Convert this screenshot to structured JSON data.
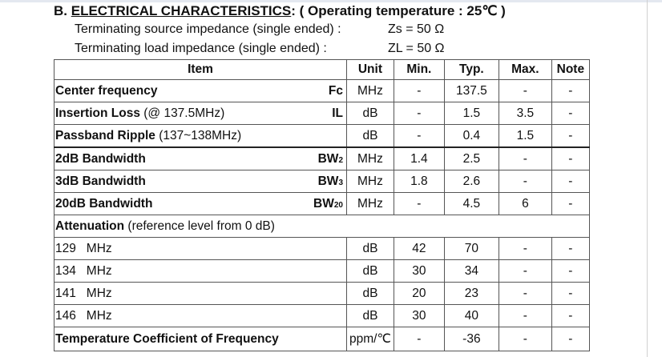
{
  "section": {
    "prefix": "B. ",
    "heading": "ELECTRICAL CHARACTERISTICS",
    "suffix": ": ( Operating temperature : 25℃ )"
  },
  "impedance": [
    {
      "label": "Terminating source impedance (single ended) :",
      "value": "Zs = 50  Ω"
    },
    {
      "label": "Terminating load impedance (single ended) :",
      "value": "ZL = 50  Ω"
    }
  ],
  "table": {
    "headers": [
      "Item",
      "Unit",
      "Min.",
      "Typ.",
      "Max.",
      "Note"
    ],
    "rows": [
      {
        "name": "Center frequency",
        "extra": "",
        "sym": "Fc",
        "sub": "",
        "unit": "MHz",
        "min": "-",
        "typ": "137.5",
        "max": "-",
        "note": "-"
      },
      {
        "name": "Insertion Loss",
        "extra": " (@ 137.5MHz)",
        "sym": "IL",
        "sub": "",
        "unit": "dB",
        "min": "-",
        "typ": "1.5",
        "max": "3.5",
        "note": "-"
      },
      {
        "name": "Passband Ripple",
        "extra": " (137~138MHz)",
        "sym": "",
        "sub": "",
        "unit": "dB",
        "min": "-",
        "typ": "0.4",
        "max": "1.5",
        "note": "-"
      },
      {
        "name": "2dB Bandwidth",
        "extra": "",
        "sym": "BW",
        "sub": "2",
        "unit": "MHz",
        "min": "1.4",
        "typ": "2.5",
        "max": "-",
        "note": "-"
      },
      {
        "name": "3dB Bandwidth",
        "extra": "",
        "sym": "BW",
        "sub": "3",
        "unit": "MHz",
        "min": "1.8",
        "typ": "2.6",
        "max": "-",
        "note": "-"
      },
      {
        "name": "20dB Bandwidth",
        "extra": "",
        "sym": "BW",
        "sub": "20",
        "unit": "MHz",
        "min": "-",
        "typ": "4.5",
        "max": "6",
        "note": "-"
      }
    ],
    "attenuation": {
      "name": "Attenuation",
      "extra": " (reference level from 0 dB)"
    },
    "att_rows": [
      {
        "freq": "129   MHz",
        "unit": "dB",
        "min": "42",
        "typ": "70",
        "max": "-",
        "note": "-"
      },
      {
        "freq": "134   MHz",
        "unit": "dB",
        "min": "30",
        "typ": "34",
        "max": "-",
        "note": "-"
      },
      {
        "freq": "141   MHz",
        "unit": "dB",
        "min": "20",
        "typ": "23",
        "max": "-",
        "note": "-"
      },
      {
        "freq": "146   MHz",
        "unit": "dB",
        "min": "30",
        "typ": "40",
        "max": "-",
        "note": "-"
      }
    ],
    "tcf": {
      "name": "Temperature Coefficient of Frequency",
      "unit": "ppm/℃",
      "min": "-",
      "typ": "-36",
      "max": "-",
      "note": "-"
    }
  }
}
